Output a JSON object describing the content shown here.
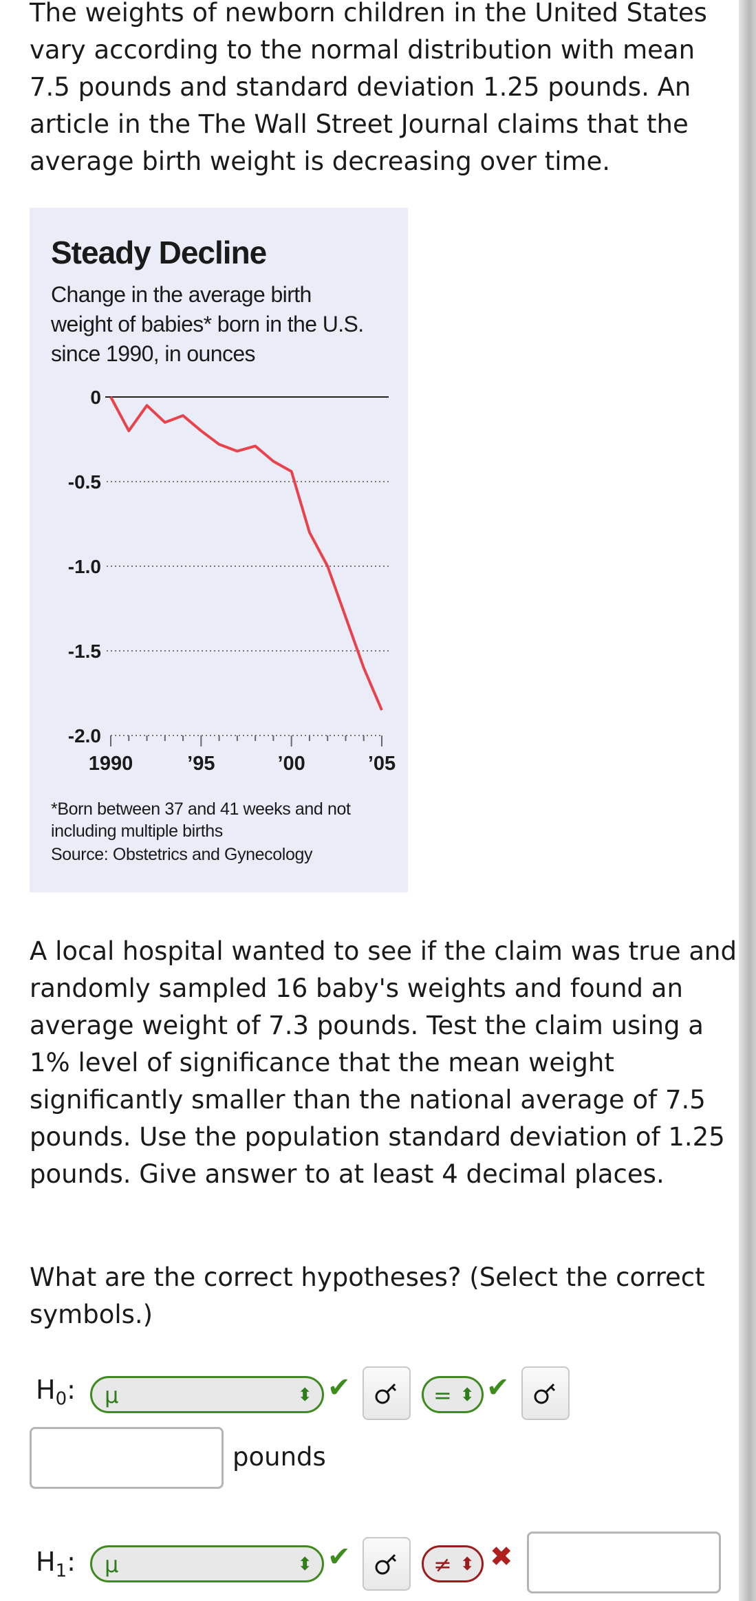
{
  "intro_text": "The weights of newborn children in the United States vary according to the normal distribution with mean 7.5 pounds and standard deviation 1.25 pounds. An article in the The Wall Street Journal claims that the average birth weight is decreasing over time.",
  "figure": {
    "title": "Steady Decline",
    "subtitle": "Change in the average birth weight of babies* born in the U.S. since 1990, in ounces",
    "footnote": "*Born between 37 and 41 weeks and not including multiple births",
    "source": "Source: Obstetrics and Gynecology"
  },
  "chart_data": {
    "type": "line",
    "title": "Steady Decline",
    "subtitle": "Change in the average birth weight of babies* born in the U.S. since 1990, in ounces",
    "xlabel": "",
    "ylabel": "",
    "ylim": [
      -2.0,
      0
    ],
    "yticks": [
      "0",
      "-0.5",
      "-1.0",
      "-1.5",
      "-2.0"
    ],
    "ytick_values": [
      0,
      -0.5,
      -1.0,
      -1.5,
      -2.0
    ],
    "xticks": [
      "1990",
      "’95",
      "’00",
      "’05"
    ],
    "xtick_values": [
      1990,
      1995,
      2000,
      2005
    ],
    "xlim": [
      1990,
      2005
    ],
    "grid": "dotted horizontal",
    "line_color": "#e8434c",
    "x": [
      1990,
      1991,
      1992,
      1993,
      1994,
      1995,
      1996,
      1997,
      1998,
      1999,
      2000,
      2001,
      2002,
      2003,
      2004,
      2005
    ],
    "values": [
      0,
      -0.2,
      -0.05,
      -0.15,
      -0.11,
      -0.2,
      -0.28,
      -0.32,
      -0.29,
      -0.38,
      -0.44,
      -0.8,
      -1.0,
      -1.3,
      -1.6,
      -1.85
    ]
  },
  "sample_text": "A local hospital wanted to see if the claim was true and randomly sampled 16 baby's weights and found an average weight of 7.3 pounds. Test the claim using a 1% level of significance that the mean weight significantly smaller than the national average of 7.5 pounds. Use the population standard deviation of 1.25 pounds. Give answer to at least 4 decimal places.",
  "question_text": "What are the correct hypotheses? (Select the correct symbols.)",
  "h0": {
    "label": "H",
    "sub": "0",
    "param_value": "μ",
    "op_value": "=",
    "value": "",
    "unit": "pounds",
    "param_status": "correct",
    "op_status": "correct"
  },
  "h1": {
    "label": "H",
    "sub": "1",
    "param_value": "μ",
    "op_value": "≠",
    "value": "",
    "param_status": "correct",
    "op_status": "incorrect"
  },
  "icons": {
    "check": "✔",
    "cross": "✖",
    "chevron": "⬍",
    "key": "key-icon"
  },
  "colors": {
    "correct": "#3c8d1c",
    "incorrect": "#b01e1e",
    "figure_bg": "#eaedf8",
    "line": "#e8434c"
  }
}
